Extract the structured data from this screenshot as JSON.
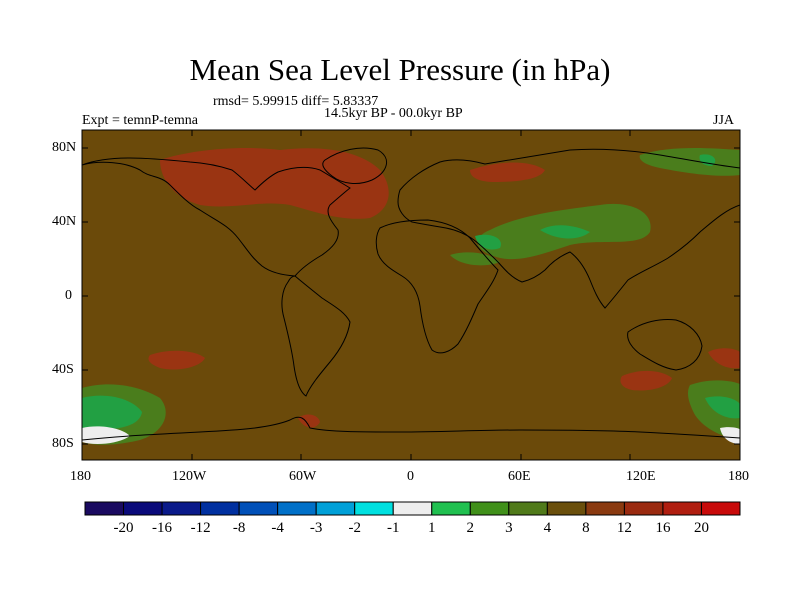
{
  "title": "Mean Sea Level Pressure (in hPa)",
  "stats": "rmsd= 5.99915 diff= 5.83337",
  "period": "14.5kyr BP - 00.0kyr BP",
  "experiment": "Expt = temnP-temna",
  "season": "JJA",
  "axes": {
    "lat_labels": [
      "80N",
      "40N",
      "0",
      "40S",
      "80S"
    ],
    "lon_labels": [
      "180",
      "120W",
      "60W",
      "0",
      "60E",
      "120E",
      "180"
    ]
  },
  "colorbar": {
    "labels": [
      "-20",
      "-16",
      "-12",
      "-8",
      "-4",
      "-3",
      "-2",
      "-1",
      "1",
      "2",
      "3",
      "4",
      "8",
      "12",
      "16",
      "20"
    ],
    "colors": [
      "#1a0a60",
      "#0a0a7a",
      "#0a1a8a",
      "#0030a0",
      "#0050b8",
      "#0070c8",
      "#00a0d8",
      "#00e0e0",
      "#eeeeee",
      "#20c050",
      "#40901a",
      "#507a1a",
      "#6a4f0c",
      "#8a3a10",
      "#9a2a10",
      "#b01e10",
      "#c80a0a"
    ]
  },
  "colors": {
    "background_field": "#6b4a0a",
    "positive_high": "#9a3412",
    "green_low": "#22a043",
    "green_mid": "#4a7d1c"
  }
}
